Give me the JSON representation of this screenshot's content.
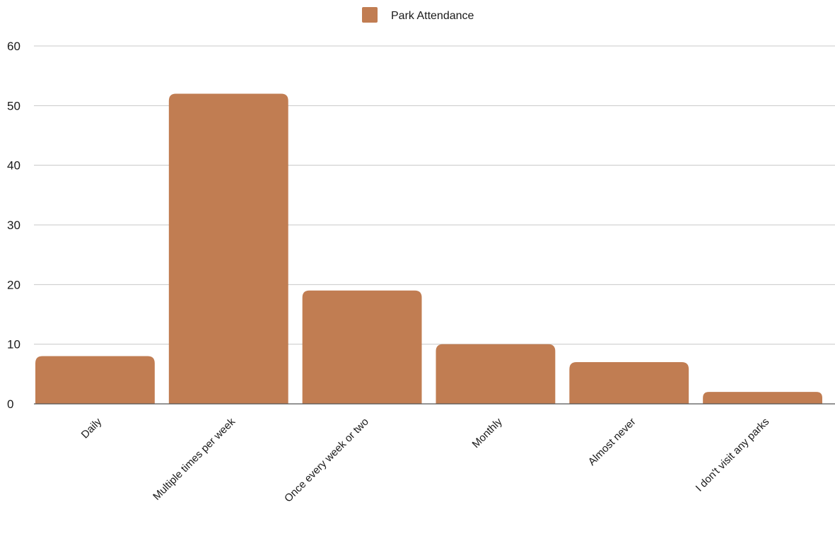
{
  "chart_data": {
    "type": "bar",
    "title": "",
    "xlabel": "",
    "ylabel": "",
    "categories": [
      "Daily",
      "Multiple times per week",
      "Once every week or two",
      "Monthly",
      "Almost never",
      "I don't visit any parks"
    ],
    "series": [
      {
        "name": "Park Attendance",
        "values": [
          8,
          52,
          19,
          10,
          7,
          2
        ],
        "color": "#c17d52"
      }
    ],
    "ylim": [
      0,
      60
    ],
    "yticks": [
      0,
      10,
      20,
      30,
      40,
      50,
      60
    ],
    "grid": true,
    "legend_position": "top-center"
  }
}
